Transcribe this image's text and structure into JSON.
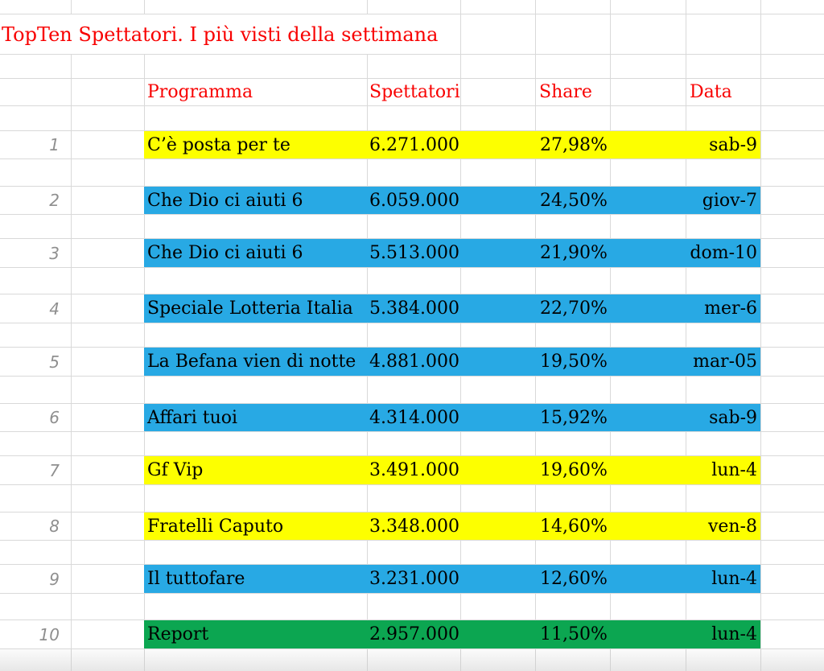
{
  "title": "TopTen Spettatori. I più visti della settimana",
  "table": {
    "headers": {
      "program": "Programma",
      "viewers": "Spettatori",
      "share": "Share",
      "date": "Data"
    },
    "rows": [
      {
        "rank": "1",
        "program": "C’è posta per te",
        "viewers": "6.271.000",
        "share": "27,98%",
        "date": "sab-9",
        "highlight": "yellow"
      },
      {
        "rank": "2",
        "program": "Che Dio ci aiuti 6",
        "viewers": "6.059.000",
        "share": "24,50%",
        "date": "giov-7",
        "highlight": "blue"
      },
      {
        "rank": "3",
        "program": "Che Dio ci aiuti 6",
        "viewers": "5.513.000",
        "share": "21,90%",
        "date": "dom-10",
        "highlight": "blue"
      },
      {
        "rank": "4",
        "program": "Speciale Lotteria Italia",
        "viewers": "5.384.000",
        "share": "22,70%",
        "date": "mer-6",
        "highlight": "blue"
      },
      {
        "rank": "5",
        "program": "La Befana vien di notte",
        "viewers": "4.881.000",
        "share": "19,50%",
        "date": "mar-05",
        "highlight": "blue"
      },
      {
        "rank": "6",
        "program": "Affari tuoi",
        "viewers": "4.314.000",
        "share": "15,92%",
        "date": "sab-9",
        "highlight": "blue"
      },
      {
        "rank": "7",
        "program": "Gf Vip",
        "viewers": "3.491.000",
        "share": "19,60%",
        "date": "lun-4",
        "highlight": "yellow"
      },
      {
        "rank": "8",
        "program": "Fratelli Caputo",
        "viewers": "3.348.000",
        "share": "14,60%",
        "date": "ven-8",
        "highlight": "yellow"
      },
      {
        "rank": "9",
        "program": "Il tuttofare",
        "viewers": "3.231.000",
        "share": "12,60%",
        "date": "lun-4",
        "highlight": "blue"
      },
      {
        "rank": "10",
        "program": "Report",
        "viewers": "2.957.000",
        "share": "11,50%",
        "date": "lun-4",
        "highlight": "green"
      }
    ]
  },
  "colors": {
    "red": "#f80000",
    "yellow": "#fdff00",
    "blue": "#28a9e4",
    "green": "#0ca651",
    "gridline": "#d9d9d9"
  }
}
